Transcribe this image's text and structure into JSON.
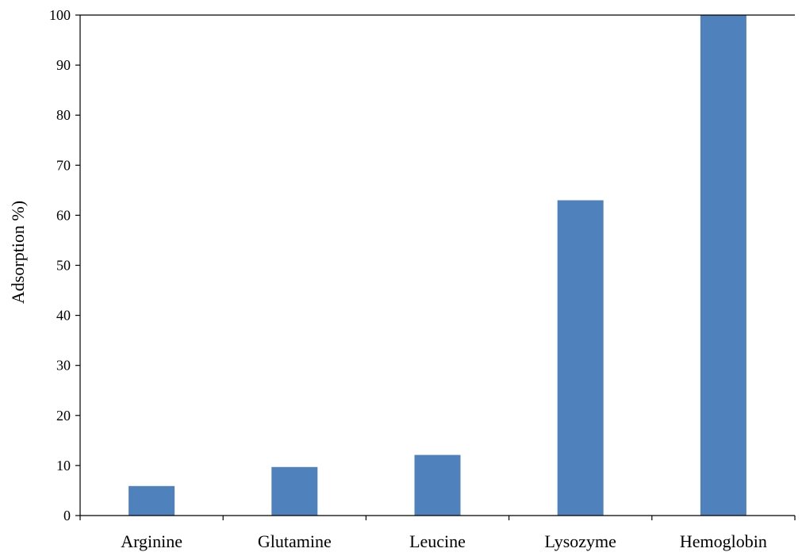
{
  "chart_data": {
    "type": "bar",
    "title": "",
    "xlabel": "",
    "ylabel": "Adsorption %)",
    "categories": [
      "Arginine",
      "Glutamine",
      "Leucine",
      "Lysozyme",
      "Hemoglobin"
    ],
    "values": [
      5.9,
      9.7,
      12.1,
      63.0,
      100.0
    ],
    "ylim": [
      0,
      100
    ],
    "yticks": [
      0,
      10,
      20,
      30,
      40,
      50,
      60,
      70,
      80,
      90,
      100
    ],
    "grid": false,
    "bar_color": "#4F81BD",
    "legend": "none"
  }
}
